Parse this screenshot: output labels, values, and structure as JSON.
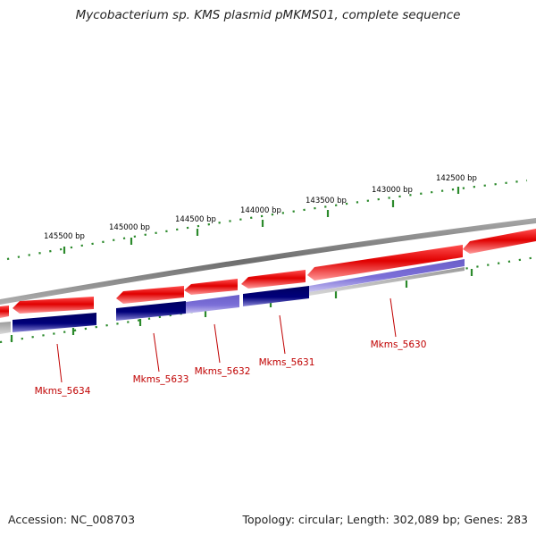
{
  "title": "Mycobacterium sp. KMS plasmid pMKMS01, complete sequence",
  "accession": "Accession: NC_008703",
  "summary": "Topology: circular; Length: 302,089 bp; Genes: 283",
  "colors": {
    "forward_gene": "#e00000",
    "reverse_gene": "#00007a",
    "reverse_gene_light": "#7b6fd8",
    "backbone": "#7f7f7f",
    "tick": "#2c8a2c",
    "label": "#c00000"
  },
  "scale_labels": [
    {
      "bp": 145500,
      "text": "145500 bp"
    },
    {
      "bp": 145000,
      "text": "145000 bp"
    },
    {
      "bp": 144500,
      "text": "144500 bp"
    },
    {
      "bp": 144000,
      "text": "144000 bp"
    },
    {
      "bp": 143500,
      "text": "143500 bp"
    },
    {
      "bp": 143000,
      "text": "143000 bp"
    },
    {
      "bp": 142500,
      "text": "142500 bp"
    }
  ],
  "genes": [
    {
      "name": "Mkms_5634"
    },
    {
      "name": "Mkms_5633"
    },
    {
      "name": "Mkms_5632"
    },
    {
      "name": "Mkms_5631"
    },
    {
      "name": "Mkms_5630"
    }
  ]
}
